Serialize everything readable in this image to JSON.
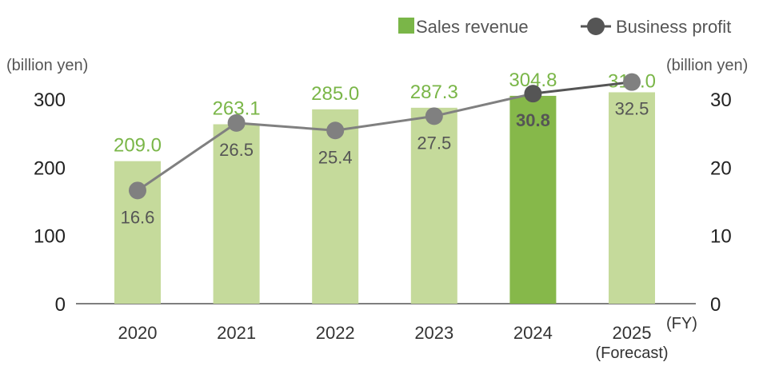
{
  "chart_data": {
    "type": "bar+line",
    "categories": [
      "2020",
      "2021",
      "2022",
      "2023",
      "2024",
      "2025"
    ],
    "x_unit_label": "(FY)",
    "x_sublabels": {
      "2025": "(Forecast)"
    },
    "series": [
      {
        "name": "Sales revenue",
        "type": "bar",
        "axis": "left",
        "values": [
          209.0,
          263.1,
          285.0,
          287.3,
          304.8,
          310.0
        ]
      },
      {
        "name": "Business profit",
        "type": "line",
        "axis": "right",
        "values": [
          16.6,
          26.5,
          25.4,
          27.5,
          30.8,
          32.5
        ]
      }
    ],
    "left_axis": {
      "label": "(billion yen)",
      "ylim": [
        0,
        300
      ],
      "ticks": [
        0,
        100,
        200,
        300
      ]
    },
    "right_axis": {
      "label": "(billion yen)",
      "ylim": [
        0,
        30
      ],
      "ticks": [
        0,
        10,
        20,
        30
      ]
    },
    "highlight_category": "2024",
    "legend_placement": "top-right",
    "grid": false,
    "colors": {
      "bar": "#c5da9b",
      "bar_highlight": "#86b84a",
      "bar_label": "#7ab648",
      "line": "#808080",
      "line_highlight": "#555555",
      "marker": "#808080",
      "marker_highlight": "#555555",
      "profit_label": "#555555",
      "axis_text": "#222222"
    }
  }
}
